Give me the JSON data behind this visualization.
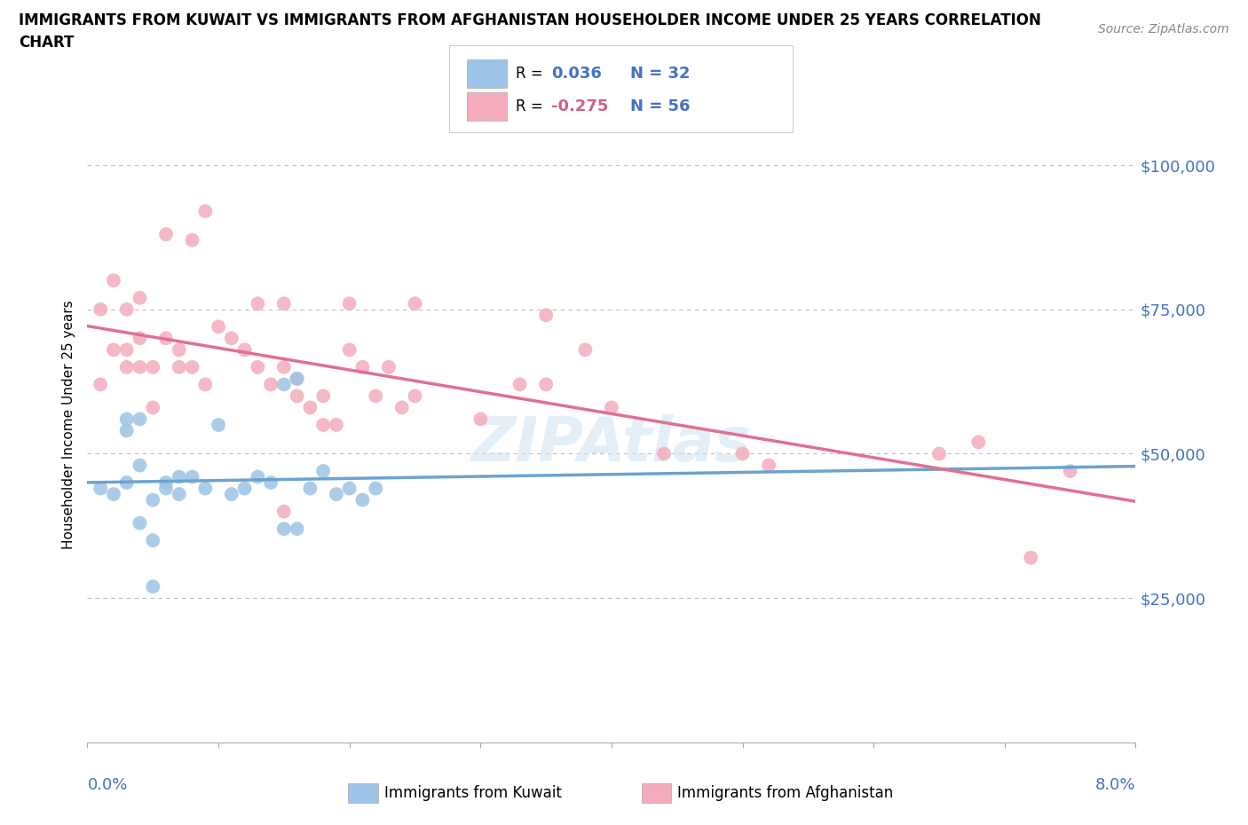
{
  "title_line1": "IMMIGRANTS FROM KUWAIT VS IMMIGRANTS FROM AFGHANISTAN HOUSEHOLDER INCOME UNDER 25 YEARS CORRELATION",
  "title_line2": "CHART",
  "source": "Source: ZipAtlas.com",
  "ylabel": "Householder Income Under 25 years",
  "r_kuwait": 0.036,
  "n_kuwait": 32,
  "r_afghanistan": -0.275,
  "n_afghanistan": 56,
  "xmin": 0.0,
  "xmax": 0.08,
  "ymin": 0,
  "ymax": 110000,
  "yticks": [
    25000,
    50000,
    75000,
    100000
  ],
  "ytick_labels": [
    "$25,000",
    "$50,000",
    "$75,000",
    "$100,000"
  ],
  "color_kuwait": "#9DC3E6",
  "color_afghanistan": "#F4ACBC",
  "line_color_kuwait": "#6BA3D0",
  "line_color_afghanistan": "#E07090",
  "color_r_value": "#4472C4",
  "color_r_neg": "#D06080",
  "color_n_value": "#4472C4",
  "color_ytick": "#4472C4",
  "color_xtick": "#4472C4",
  "watermark_color": "#C8DFF0",
  "watermark_alpha": 0.5,
  "kuwait_points_x": [
    0.001,
    0.002,
    0.003,
    0.003,
    0.003,
    0.004,
    0.004,
    0.004,
    0.005,
    0.005,
    0.005,
    0.006,
    0.006,
    0.007,
    0.007,
    0.008,
    0.009,
    0.01,
    0.011,
    0.012,
    0.013,
    0.014,
    0.015,
    0.015,
    0.016,
    0.016,
    0.017,
    0.018,
    0.019,
    0.02,
    0.021,
    0.022
  ],
  "kuwait_points_y": [
    44000,
    43000,
    54000,
    56000,
    45000,
    48000,
    38000,
    56000,
    42000,
    35000,
    27000,
    44000,
    45000,
    43000,
    46000,
    46000,
    44000,
    55000,
    43000,
    44000,
    46000,
    45000,
    62000,
    37000,
    63000,
    37000,
    44000,
    47000,
    43000,
    44000,
    42000,
    44000
  ],
  "afghanistan_points_x": [
    0.001,
    0.001,
    0.002,
    0.002,
    0.003,
    0.003,
    0.003,
    0.004,
    0.004,
    0.004,
    0.005,
    0.005,
    0.006,
    0.006,
    0.007,
    0.007,
    0.008,
    0.008,
    0.009,
    0.009,
    0.01,
    0.011,
    0.012,
    0.013,
    0.013,
    0.014,
    0.015,
    0.015,
    0.015,
    0.016,
    0.016,
    0.017,
    0.018,
    0.018,
    0.019,
    0.02,
    0.02,
    0.021,
    0.022,
    0.023,
    0.024,
    0.025,
    0.025,
    0.03,
    0.033,
    0.035,
    0.035,
    0.038,
    0.04,
    0.044,
    0.05,
    0.052,
    0.065,
    0.068,
    0.072,
    0.075
  ],
  "afghanistan_points_y": [
    75000,
    62000,
    80000,
    68000,
    75000,
    68000,
    65000,
    70000,
    77000,
    65000,
    65000,
    58000,
    88000,
    70000,
    68000,
    65000,
    87000,
    65000,
    92000,
    62000,
    72000,
    70000,
    68000,
    76000,
    65000,
    62000,
    76000,
    65000,
    40000,
    60000,
    63000,
    58000,
    60000,
    55000,
    55000,
    68000,
    76000,
    65000,
    60000,
    65000,
    58000,
    60000,
    76000,
    56000,
    62000,
    74000,
    62000,
    68000,
    58000,
    50000,
    50000,
    48000,
    50000,
    52000,
    32000,
    47000
  ]
}
